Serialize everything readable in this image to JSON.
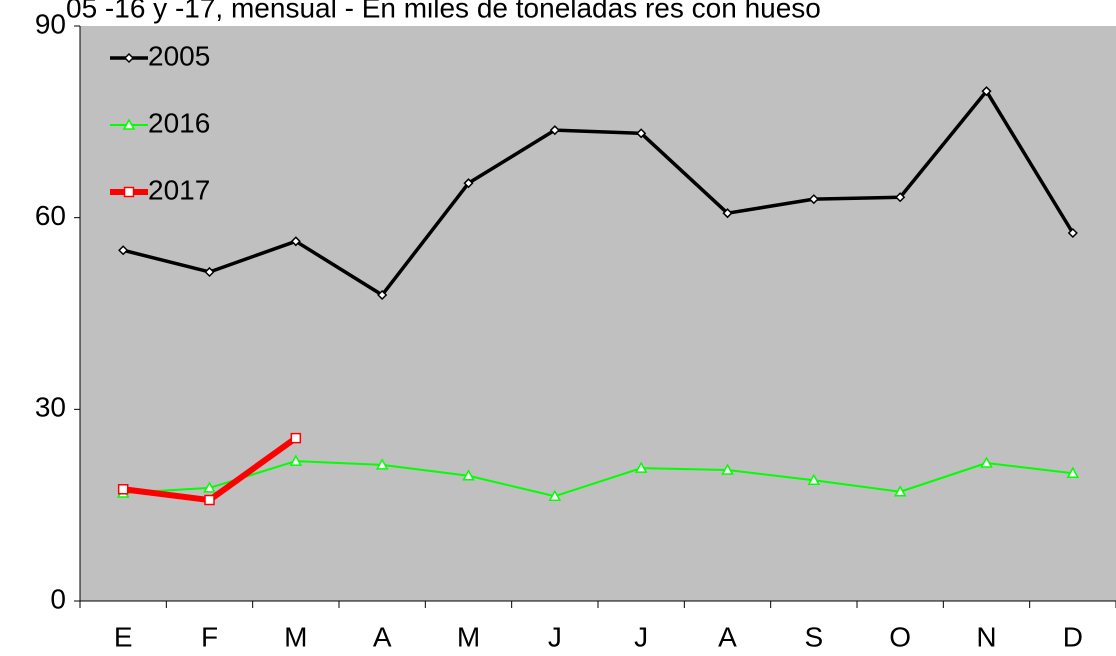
{
  "chart_data": {
    "type": "line",
    "title": "05 -16 y -17, mensual - En miles de toneladas res con hueso",
    "categories": [
      "E",
      "F",
      "M",
      "A",
      "M",
      "J",
      "J",
      "A",
      "S",
      "O",
      "N",
      "D"
    ],
    "series": [
      {
        "name": "2005",
        "color": "#000000",
        "marker": "diamond",
        "values": [
          54.9,
          51.5,
          56.3,
          47.9,
          65.4,
          73.7,
          73.2,
          60.7,
          62.9,
          63.2,
          79.8,
          57.6
        ]
      },
      {
        "name": "2016",
        "color": "#00ff00",
        "marker": "triangle",
        "values": [
          16.9,
          17.7,
          21.9,
          21.3,
          19.6,
          16.4,
          20.8,
          20.5,
          18.9,
          17.1,
          21.6,
          20.0
        ]
      },
      {
        "name": "2017",
        "color": "#ff0000",
        "marker": "square",
        "values": [
          17.5,
          15.8,
          25.5,
          null,
          null,
          null,
          null,
          null,
          null,
          null,
          null,
          null
        ]
      }
    ],
    "ylim": [
      0,
      90
    ],
    "yticks": [
      0,
      30,
      60,
      90
    ],
    "background": "#c0c0c0",
    "legend": "top-left"
  }
}
